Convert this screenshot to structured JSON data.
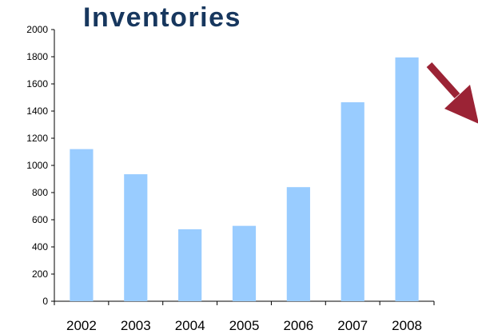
{
  "chart_data": {
    "type": "bar",
    "title": "Inventories",
    "categories": [
      "2002",
      "2003",
      "2004",
      "2005",
      "2006",
      "2007",
      "2008"
    ],
    "values": [
      1120,
      935,
      530,
      555,
      840,
      1465,
      1795
    ],
    "ylim": [
      0,
      2000
    ],
    "yticks": [
      0,
      200,
      400,
      600,
      800,
      1000,
      1200,
      1400,
      1600,
      1800,
      2000
    ],
    "xlabel": "",
    "ylabel": "",
    "grid": false,
    "bar_color": "#99ccff",
    "annotation": {
      "type": "arrow",
      "direction": "down-right",
      "color": "#9b2335"
    }
  }
}
